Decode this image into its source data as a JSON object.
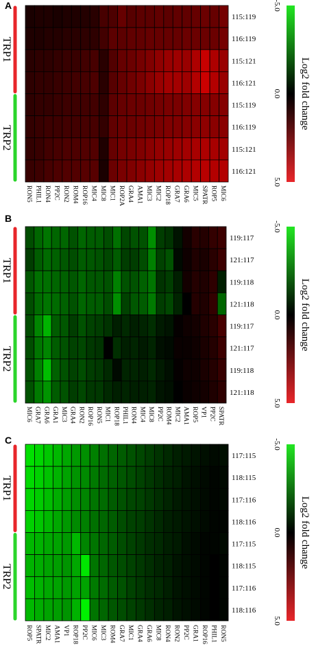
{
  "colorbar": {
    "label": "Log2 fold change",
    "ticks": [
      "-5.0",
      "0.0",
      "5.0"
    ]
  },
  "groups": [
    "TRP1",
    "TRP2"
  ],
  "chart_data": [
    {
      "type": "heatmap",
      "panel": "A",
      "rows": [
        "115:119",
        "116:119",
        "115:121",
        "116:121",
        "115:119",
        "116:119",
        "115:121",
        "116:121"
      ],
      "columns": [
        "RON5",
        "PHIL1",
        "RON4",
        "PP2C",
        "RON2",
        "ROM4",
        "ROP16",
        "MIC4",
        "MIC8",
        "MIC1",
        "ROP2A",
        "GRA4",
        "AMA1",
        "MIC3",
        "MIC2",
        "ROP18",
        "GRA7",
        "GRA6",
        "MIC5",
        "SPATR",
        "ROP5",
        "MIC6"
      ],
      "values": [
        [
          0.5,
          0.6,
          0.6,
          0.5,
          0.6,
          0.6,
          0.7,
          0.8,
          1.4,
          1.5,
          2.0,
          1.7,
          1.8,
          1.8,
          1.9,
          1.8,
          1.9,
          1.9,
          2.0,
          2.1,
          2.0,
          2.3
        ],
        [
          0.6,
          0.6,
          0.7,
          0.7,
          0.8,
          0.8,
          0.9,
          0.9,
          1.3,
          1.8,
          1.8,
          1.9,
          1.9,
          2.0,
          2.0,
          2.0,
          2.0,
          2.1,
          2.1,
          2.1,
          2.1,
          2.3
        ],
        [
          0.8,
          0.9,
          0.9,
          1.0,
          1.1,
          1.1,
          1.3,
          1.4,
          0.8,
          1.6,
          2.0,
          2.1,
          2.3,
          2.5,
          2.8,
          3.0,
          3.1,
          3.0,
          3.4,
          3.9,
          3.4,
          3.0
        ],
        [
          0.9,
          1.0,
          1.0,
          1.1,
          1.2,
          1.3,
          1.4,
          1.5,
          0.8,
          1.7,
          2.0,
          2.2,
          2.4,
          2.7,
          3.0,
          3.2,
          3.2,
          3.1,
          3.5,
          4.0,
          3.5,
          3.0
        ],
        [
          0.9,
          1.0,
          1.0,
          1.1,
          1.2,
          1.2,
          1.3,
          1.3,
          0.9,
          1.8,
          2.0,
          2.1,
          2.1,
          2.2,
          2.3,
          2.4,
          2.4,
          2.5,
          2.6,
          2.6,
          2.6,
          2.6
        ],
        [
          1.0,
          1.1,
          1.2,
          1.2,
          1.3,
          1.3,
          1.4,
          1.4,
          1.0,
          1.9,
          2.1,
          2.1,
          2.2,
          2.3,
          2.4,
          2.5,
          2.5,
          2.6,
          2.7,
          2.8,
          2.7,
          2.7
        ],
        [
          1.0,
          1.1,
          1.3,
          1.4,
          1.5,
          1.5,
          1.6,
          1.6,
          0.6,
          2.0,
          2.3,
          2.4,
          2.5,
          2.7,
          2.9,
          3.0,
          3.1,
          3.2,
          3.3,
          3.4,
          3.3,
          3.2
        ],
        [
          1.1,
          1.2,
          1.4,
          1.5,
          1.6,
          1.6,
          1.7,
          1.7,
          0.5,
          2.1,
          2.4,
          2.5,
          2.7,
          2.9,
          3.1,
          3.2,
          3.3,
          3.4,
          3.5,
          3.6,
          3.5,
          3.5
        ]
      ],
      "color_range": [
        -5.0,
        5.0
      ]
    },
    {
      "type": "heatmap",
      "panel": "B",
      "rows": [
        "119:117",
        "121:117",
        "119:118",
        "121:118",
        "119:117",
        "121:117",
        "119:118",
        "121:118"
      ],
      "columns": [
        "MIC6",
        "GRA7",
        "GRA6",
        "GRA1",
        "MIC3",
        "GRA4",
        "RON2",
        "ROP16",
        "RON5",
        "MIC1",
        "ROP18",
        "PHIL1",
        "RON4",
        "MIC4",
        "MIC8",
        "PP2C",
        "ROM4",
        "MIC2",
        "AMA1",
        "ROP5",
        "VP1",
        "PP2C",
        "SPATR"
      ],
      "values": [
        [
          -1.5,
          -2.0,
          -2.3,
          -2.0,
          -2.0,
          -1.6,
          -2.0,
          -1.8,
          -1.8,
          -1.5,
          -2.2,
          -1.4,
          -1.6,
          -1.6,
          -2.8,
          -1.2,
          -1.0,
          -0.4,
          0.4,
          0.8,
          0.7,
          1.0,
          1.2
        ],
        [
          -1.2,
          -1.8,
          -2.1,
          -1.9,
          -1.7,
          -1.5,
          -1.8,
          -1.7,
          -1.6,
          -1.4,
          -1.8,
          -1.2,
          -1.2,
          -1.5,
          -2.5,
          -1.3,
          -1.6,
          -0.2,
          0.3,
          0.6,
          0.5,
          0.8,
          1.2
        ],
        [
          -1.7,
          -2.2,
          -2.2,
          -2.0,
          -1.9,
          -1.7,
          -2.0,
          -1.7,
          -1.7,
          -1.6,
          -2.5,
          -1.6,
          -1.6,
          -1.9,
          -2.3,
          -1.0,
          -1.2,
          -0.6,
          0.4,
          0.7,
          0.6,
          0.9,
          -0.6
        ],
        [
          -1.5,
          -2.1,
          -2.3,
          -2.1,
          -1.9,
          -1.6,
          -2.0,
          -1.8,
          -1.8,
          -1.5,
          -2.8,
          -1.3,
          -1.7,
          -1.8,
          -2.4,
          -1.2,
          -1.4,
          -0.7,
          0.0,
          0.7,
          0.6,
          1.0,
          -2.0
        ],
        [
          -1.5,
          -2.6,
          -3.5,
          -1.8,
          -1.7,
          -1.2,
          -1.6,
          -1.3,
          -1.2,
          -1.0,
          -0.6,
          -0.8,
          -0.6,
          -0.7,
          -0.9,
          -0.5,
          -0.4,
          0.1,
          0.3,
          0.4,
          0.6,
          0.8,
          1.4
        ],
        [
          -1.5,
          -2.3,
          -2.6,
          -1.8,
          -1.6,
          -1.3,
          -1.4,
          -1.1,
          -1.0,
          0.0,
          -0.9,
          -0.6,
          -0.7,
          -0.5,
          -0.7,
          -0.3,
          -0.2,
          0.2,
          0.2,
          0.3,
          0.5,
          0.7,
          1.2
        ],
        [
          -1.6,
          -2.5,
          -3.7,
          -1.9,
          -1.6,
          -1.3,
          -1.5,
          -1.2,
          -1.1,
          -0.8,
          -0.2,
          -0.7,
          -0.7,
          -0.6,
          -0.8,
          -0.5,
          -0.3,
          0.1,
          0.3,
          0.3,
          0.5,
          0.7,
          1.1
        ],
        [
          -1.6,
          -2.4,
          -2.9,
          -1.8,
          -1.6,
          -1.2,
          -1.4,
          -1.1,
          -1.1,
          -0.8,
          -0.6,
          -0.7,
          -0.6,
          -0.6,
          -0.7,
          -0.4,
          -0.3,
          0.0,
          0.2,
          0.3,
          0.4,
          0.6,
          0.9
        ]
      ],
      "color_range": [
        -5.0,
        5.0
      ]
    },
    {
      "type": "heatmap",
      "panel": "C",
      "rows": [
        "117:115",
        "118:115",
        "117:116",
        "118:116",
        "117:115",
        "118:115",
        "117:116",
        "118:116"
      ],
      "columns": [
        "ROP5",
        "SPATR",
        "MIC2",
        "AMA1",
        "VP1",
        "ROP18",
        "PP2C",
        "MIC6",
        "MIC3",
        "ROM4",
        "GRA7",
        "MIC1",
        "GRA4",
        "GRA6",
        "MIC8",
        "RON4",
        "RON2",
        "PP2C",
        "GRA1",
        "ROP16",
        "PHIL1",
        "RON5"
      ],
      "values": [
        [
          -4.4,
          -4.2,
          -3.9,
          -3.6,
          -3.3,
          -3.0,
          -2.8,
          -2.5,
          -2.2,
          -2.0,
          -1.8,
          -1.6,
          -1.4,
          -1.2,
          -1.0,
          -0.8,
          -0.6,
          -0.5,
          -0.4,
          -0.3,
          -0.2,
          -0.3
        ],
        [
          -4.3,
          -4.1,
          -3.8,
          -3.5,
          -3.2,
          -2.9,
          -2.7,
          -2.4,
          -2.1,
          -1.9,
          -1.7,
          -1.5,
          -1.3,
          -1.1,
          -0.9,
          -0.7,
          -0.6,
          -0.4,
          -0.3,
          -0.2,
          -0.1,
          -0.2
        ],
        [
          -4.2,
          -4.0,
          -3.7,
          -3.4,
          -3.1,
          -2.8,
          -2.6,
          -2.3,
          -2.1,
          -1.8,
          -1.6,
          -1.4,
          -1.3,
          -1.1,
          -0.9,
          -0.7,
          -0.5,
          -0.4,
          -0.3,
          -0.2,
          -0.1,
          -0.2
        ],
        [
          -4.1,
          -3.9,
          -3.6,
          -3.3,
          -3.0,
          -2.7,
          -2.5,
          -2.2,
          -2.0,
          -1.8,
          -1.5,
          -1.3,
          -1.2,
          -1.0,
          -0.8,
          -0.6,
          -0.5,
          -0.4,
          -0.3,
          -0.2,
          -0.1,
          -0.1
        ],
        [
          -3.6,
          -3.5,
          -3.3,
          -3.2,
          -3.0,
          -3.6,
          -2.6,
          -2.3,
          -2.0,
          -1.8,
          -1.5,
          -1.3,
          -1.1,
          -0.9,
          -0.8,
          -0.6,
          -0.5,
          -0.3,
          -0.2,
          -0.1,
          -0.1,
          -0.2
        ],
        [
          -3.5,
          -3.4,
          -3.2,
          -3.1,
          -2.9,
          -3.3,
          -4.5,
          -2.3,
          -2.0,
          -1.7,
          -1.5,
          -1.3,
          -1.1,
          -0.9,
          -0.7,
          -0.6,
          -0.4,
          -0.3,
          -0.2,
          -0.1,
          0.0,
          -0.1
        ],
        [
          -3.7,
          -3.5,
          -3.3,
          -3.2,
          -3.0,
          -3.2,
          -3.2,
          -2.4,
          -2.1,
          -1.8,
          -1.6,
          -1.3,
          -1.1,
          -0.9,
          -0.8,
          -0.6,
          -0.4,
          -0.3,
          -0.2,
          -0.1,
          0.0,
          -0.1
        ],
        [
          -3.6,
          -3.4,
          -3.2,
          -3.1,
          -2.9,
          -3.5,
          -4.7,
          -2.3,
          -2.0,
          -1.7,
          -1.5,
          -1.3,
          -1.1,
          -0.9,
          -0.7,
          -0.6,
          -0.4,
          -0.3,
          -0.2,
          -0.1,
          0.0,
          -0.1
        ]
      ],
      "color_range": [
        -5.0,
        5.0
      ]
    }
  ]
}
